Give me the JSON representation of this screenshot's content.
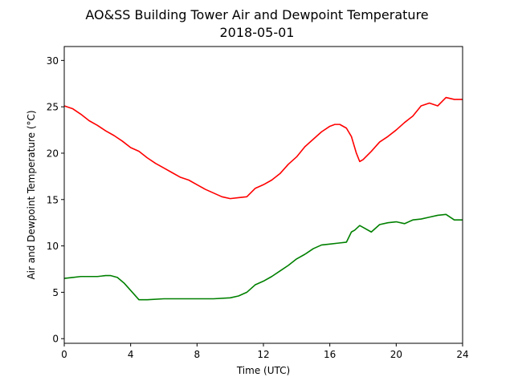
{
  "chart_data": {
    "type": "line",
    "title": "AO&SS Building Tower Air and Dewpoint Temperature",
    "subtitle": "2018-05-01",
    "xlabel": "Time (UTC)",
    "ylabel": "Air and Dewpoint Temperature (°C)",
    "xlim": [
      0,
      24
    ],
    "ylim": [
      -0.5,
      31.5
    ],
    "xticks": [
      0,
      4,
      8,
      12,
      16,
      20,
      24
    ],
    "yticks": [
      0,
      5,
      10,
      15,
      20,
      25,
      30
    ],
    "grid": false,
    "series": [
      {
        "color": "#ff0000",
        "x": [
          0,
          0.5,
          1,
          1.5,
          2,
          2.5,
          3,
          3.5,
          4,
          4.5,
          5,
          5.5,
          6,
          6.5,
          7,
          7.5,
          8,
          8.5,
          9,
          9.5,
          10,
          10.5,
          11,
          11.5,
          12,
          12.5,
          13,
          13.5,
          14,
          14.5,
          15,
          15.5,
          16,
          16.3,
          16.6,
          17,
          17.3,
          17.6,
          17.8,
          18,
          18.5,
          19,
          19.5,
          20,
          20.5,
          21,
          21.5,
          22,
          22.5,
          23,
          23.5,
          24
        ],
        "y": [
          25.1,
          24.8,
          24.2,
          23.5,
          23.0,
          22.4,
          21.9,
          21.3,
          20.6,
          20.2,
          19.5,
          18.9,
          18.4,
          17.9,
          17.4,
          17.1,
          16.6,
          16.1,
          15.7,
          15.3,
          15.1,
          15.2,
          15.3,
          16.2,
          16.6,
          17.1,
          17.8,
          18.8,
          19.6,
          20.7,
          21.5,
          22.3,
          22.9,
          23.1,
          23.1,
          22.7,
          21.8,
          20.0,
          19.1,
          19.3,
          20.2,
          21.2,
          21.8,
          22.5,
          23.3,
          24.0,
          25.1,
          25.4,
          25.1,
          26.0,
          25.8,
          25.8
        ]
      },
      {
        "color": "#008000",
        "x": [
          0,
          0.5,
          1,
          1.5,
          2,
          2.5,
          2.8,
          3.2,
          3.6,
          4,
          4.5,
          5,
          6,
          7,
          8,
          9,
          10,
          10.5,
          11,
          11.5,
          12,
          12.5,
          13,
          13.5,
          14,
          14.5,
          15,
          15.5,
          16,
          16.5,
          17,
          17.3,
          17.5,
          17.8,
          18,
          18.5,
          19,
          19.5,
          20,
          20.5,
          21,
          21.5,
          22,
          22.5,
          23,
          23.5,
          24
        ],
        "y": [
          6.5,
          6.6,
          6.7,
          6.7,
          6.7,
          6.8,
          6.8,
          6.6,
          6.0,
          5.2,
          4.2,
          4.2,
          4.3,
          4.3,
          4.3,
          4.3,
          4.4,
          4.6,
          5.0,
          5.8,
          6.2,
          6.7,
          7.3,
          7.9,
          8.6,
          9.1,
          9.7,
          10.1,
          10.2,
          10.3,
          10.4,
          11.5,
          11.7,
          12.2,
          12.0,
          11.5,
          12.3,
          12.5,
          12.6,
          12.4,
          12.8,
          12.9,
          13.1,
          13.3,
          13.4,
          12.8,
          12.8
        ]
      }
    ]
  }
}
